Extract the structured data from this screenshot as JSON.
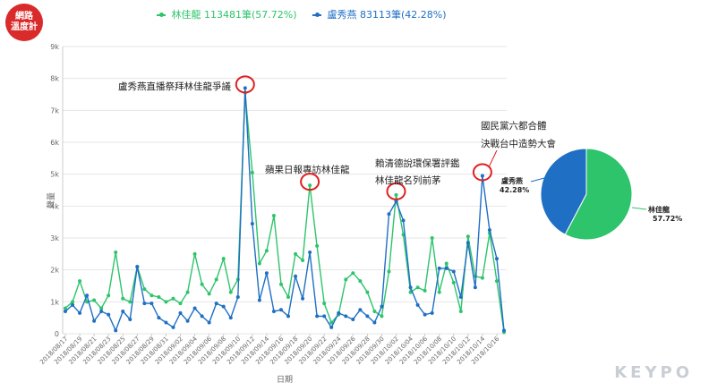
{
  "logo": {
    "line1": "網路",
    "line2": "溫度計"
  },
  "watermark": "KEYPO",
  "chart_data": [
    {
      "type": "line",
      "xlabel": "日期",
      "ylabel": "聲量",
      "ylim": [
        0,
        9000
      ],
      "yticks": [
        "0",
        "1k",
        "2k",
        "3k",
        "4k",
        "5k",
        "6k",
        "7k",
        "8k",
        "9k"
      ],
      "grid": true,
      "legend_position": "top",
      "x_tick_labels": [
        "2018/08/17",
        "2018/08/19",
        "2018/08/21",
        "2018/08/23",
        "2018/08/25",
        "2018/08/27",
        "2018/08/29",
        "2018/08/31",
        "2018/09/02",
        "2018/09/04",
        "2018/09/06",
        "2018/09/08",
        "2018/09/10",
        "2018/09/12",
        "2018/09/14",
        "2018/09/16",
        "2018/09/18",
        "2018/09/20",
        "2018/09/22",
        "2018/09/24",
        "2018/09/26",
        "2018/09/28",
        "2018/09/30",
        "2018/10/02",
        "2018/10/04",
        "2018/10/06",
        "2018/10/08",
        "2018/10/10",
        "2018/10/12",
        "2018/10/14",
        "2018/10/16"
      ],
      "series": [
        {
          "name": "林佳龍",
          "legend_text": "林佳龍 113481筆(57.72%)",
          "color": "#2dc46b",
          "values": [
            800,
            1000,
            1650,
            1000,
            1050,
            800,
            1200,
            2550,
            1100,
            1000,
            2100,
            1400,
            1200,
            1150,
            1000,
            1100,
            950,
            1300,
            2500,
            1550,
            1250,
            1700,
            2350,
            1300,
            1700,
            7550,
            5050,
            2200,
            2600,
            3700,
            1550,
            1150,
            2500,
            2300,
            4650,
            2750,
            950,
            350,
            600,
            1700,
            1900,
            1650,
            1300,
            700,
            550,
            1950,
            4350,
            3100,
            1300,
            1450,
            1350,
            3000,
            1300,
            2200,
            1600,
            700,
            3050,
            1800,
            1750,
            3150,
            1650,
            50
          ]
        },
        {
          "name": "盧秀燕",
          "legend_text": "盧秀燕 83113筆(42.28%)",
          "color": "#1f6fc4",
          "values": [
            700,
            900,
            650,
            1200,
            400,
            700,
            600,
            100,
            700,
            450,
            2100,
            950,
            950,
            500,
            350,
            200,
            650,
            400,
            800,
            550,
            350,
            950,
            850,
            500,
            1150,
            7700,
            3450,
            1050,
            1900,
            700,
            750,
            550,
            1800,
            1100,
            2550,
            550,
            550,
            200,
            650,
            550,
            450,
            750,
            550,
            350,
            850,
            3750,
            4150,
            3550,
            1450,
            900,
            600,
            650,
            2050,
            2050,
            1950,
            1150,
            2850,
            1450,
            4950,
            3250,
            2350,
            100
          ]
        }
      ],
      "annotations": [
        {
          "text": "盧秀燕直播祭拜林佳龍爭議"
        },
        {
          "text": "蘋果日報專訪林佳龍"
        },
        {
          "text": "賴清德說環保署評鑑"
        },
        {
          "text": "林佳龍名列前茅"
        },
        {
          "text": "國民黨六都合體"
        },
        {
          "text": "決戰台中造勢大會"
        }
      ]
    },
    {
      "type": "pie",
      "slices": [
        {
          "name": "林佳龍",
          "value": 57.72,
          "label": "57.72%",
          "color": "#2dc46b"
        },
        {
          "name": "盧秀燕",
          "value": 42.28,
          "label": "42.28%",
          "color": "#1f6fc4"
        }
      ]
    }
  ]
}
